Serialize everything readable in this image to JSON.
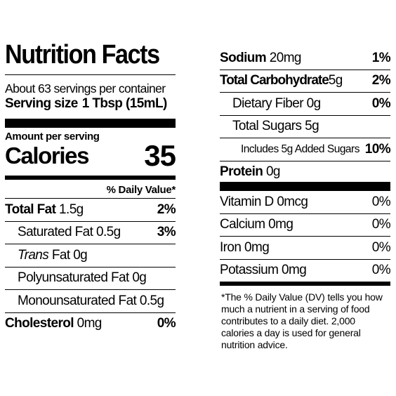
{
  "label": {
    "title": "Nutrition Facts",
    "servings_per_container": "About 63 servings per container",
    "serving_size_label": "Serving size",
    "serving_size_value": "1 Tbsp (15mL)",
    "amount_per_serving": "Amount per serving",
    "calories_label": "Calories",
    "calories_value": "35",
    "daily_value_header": "% Daily Value*"
  },
  "left_nutrients": [
    {
      "name": "Total Fat",
      "amount": "1.5g",
      "dv": "2%"
    },
    {
      "name": "Saturated Fat",
      "amount": "0.5g",
      "dv": "3%"
    },
    {
      "name": "Trans",
      "amount": "Fat 0g",
      "dv": ""
    },
    {
      "name": "Polyunsaturated Fat",
      "amount": "0g",
      "dv": ""
    },
    {
      "name": "Monounsaturated Fat",
      "amount": "0.5g",
      "dv": ""
    },
    {
      "name": "Cholesterol",
      "amount": "0mg",
      "dv": "0%"
    }
  ],
  "right_nutrients": [
    {
      "name": "Sodium",
      "amount": "20mg",
      "dv": "1%"
    },
    {
      "name": "Total Carbohydrate",
      "amount": "5g",
      "dv": "2%"
    },
    {
      "name": "Dietary Fiber",
      "amount": "0g",
      "dv": "0%"
    },
    {
      "name": "Total Sugars",
      "amount": "5g",
      "dv": ""
    },
    {
      "name": "Includes 5g Added Sugars",
      "amount": "",
      "dv": "10%"
    },
    {
      "name": "Protein",
      "amount": "0g",
      "dv": ""
    }
  ],
  "vitamins": [
    {
      "name": "Vitamin D",
      "amount": "0mcg",
      "dv": "0%"
    },
    {
      "name": "Calcium",
      "amount": "0mg",
      "dv": "0%"
    },
    {
      "name": "Iron",
      "amount": "0mg",
      "dv": "0%"
    },
    {
      "name": "Potassium",
      "amount": "0mg",
      "dv": "0%"
    }
  ],
  "footnote": "*The % Daily Value (DV) tells you how much a nutrient in a serving of food contributes to a daily diet. 2,000 calories a day is used for general nutrition advice."
}
